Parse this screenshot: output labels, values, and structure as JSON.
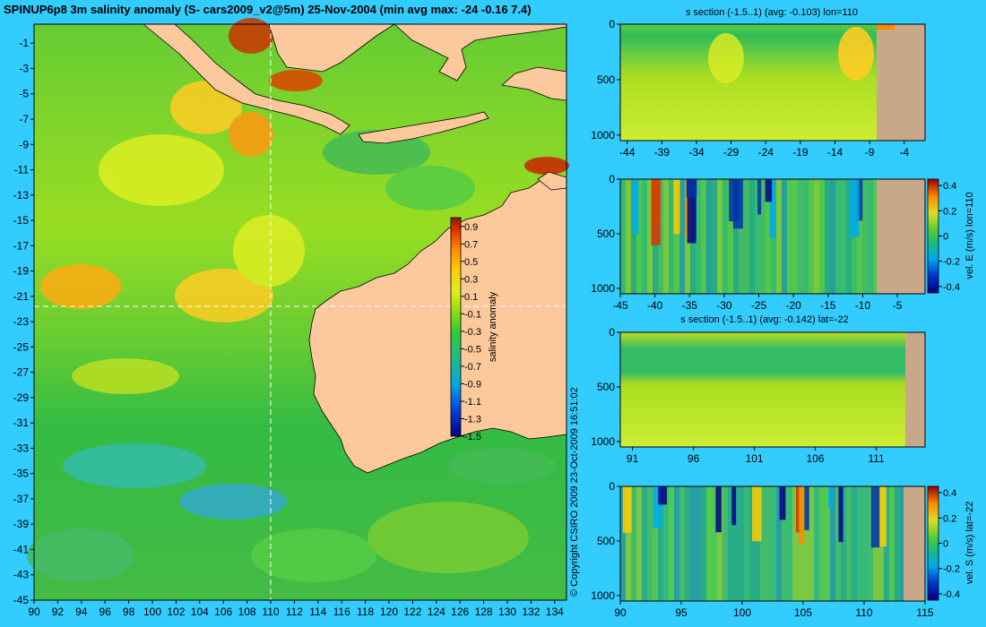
{
  "title": "SPINUP6p8 3m salinity anomaly (S- cars2009_v2@5m) 25-Nov-2004 (min avg max: -24 -0.16 7.4)",
  "copyright": "© Copyright CSIRO 2009   23-Oct-2009 16:51:02",
  "colors": {
    "background": "#33ccff",
    "land": "#fcc99c",
    "section_land": "#c8a888"
  },
  "chart_data": [
    {
      "type": "heatmap",
      "name": "salinity-map",
      "x_ticks": [
        90,
        92,
        94,
        96,
        98,
        100,
        102,
        104,
        106,
        108,
        110,
        112,
        114,
        116,
        118,
        120,
        122,
        124,
        126,
        128,
        130,
        132,
        134
      ],
      "y_ticks": [
        -1,
        -3,
        -5,
        -7,
        -9,
        -11,
        -13,
        -15,
        -17,
        -19,
        -21,
        -23,
        -25,
        -27,
        -29,
        -31,
        -33,
        -35,
        -37,
        -39,
        -41,
        -43,
        -45
      ],
      "xlim": [
        90,
        135
      ],
      "ylim": [
        -45,
        0.5
      ],
      "crosshair": {
        "lon": 110,
        "lat": -22
      },
      "colorbar": {
        "label": "salinity anomaly",
        "ticks": [
          "0.9",
          "0.7",
          "0.5",
          "0.3",
          "0.1",
          "-0.1",
          "-0.3",
          "-0.5",
          "-0.7",
          "-0.9",
          "-1.1",
          "-1.3",
          "-1.5"
        ],
        "range": [
          -1.5,
          1.0
        ]
      }
    },
    {
      "type": "heatmap",
      "name": "s-section-lon110",
      "title": "s section (-1.5..1) (avg: -0.103) lon=110",
      "x_ticks": [
        "-44",
        "-39",
        "-34",
        "-29",
        "-24",
        "-19",
        "-14",
        "-9",
        "-4"
      ],
      "y_ticks": [
        "0",
        "500",
        "1000"
      ],
      "xlim": [
        -45,
        -1
      ],
      "ylim": [
        1050,
        0
      ]
    },
    {
      "type": "heatmap",
      "name": "vel-e-section-lon110",
      "x_ticks": [
        "-45",
        "-40",
        "-35",
        "-30",
        "-25",
        "-20",
        "-15",
        "-10",
        "-5"
      ],
      "y_ticks": [
        "0",
        "500",
        "1000"
      ],
      "xlim": [
        -45,
        -1
      ],
      "ylim": [
        1050,
        0
      ],
      "colorbar": {
        "label": "vel. E (m/s) lon=110",
        "ticks": [
          "0.4",
          "0.2",
          "0",
          "-0.2",
          "-0.4"
        ],
        "range": [
          -0.45,
          0.45
        ]
      }
    },
    {
      "type": "heatmap",
      "name": "s-section-lat-22",
      "title": "s section (-1.5..1) (avg: -0.142) lat=-22",
      "x_ticks": [
        "91",
        "96",
        "101",
        "106",
        "111"
      ],
      "y_ticks": [
        "0",
        "500",
        "1000"
      ],
      "xlim": [
        90,
        115
      ],
      "ylim": [
        1050,
        0
      ]
    },
    {
      "type": "heatmap",
      "name": "vel-s-section-lat-22",
      "x_ticks": [
        "90",
        "95",
        "100",
        "105",
        "110",
        "115"
      ],
      "y_ticks": [
        "0",
        "500",
        "1000"
      ],
      "xlim": [
        90,
        115
      ],
      "ylim": [
        1050,
        0
      ],
      "colorbar": {
        "label": "vel. S (m/s) lat=-22",
        "ticks": [
          "0.4",
          "0.2",
          "0",
          "-0.2",
          "-0.4"
        ],
        "range": [
          -0.45,
          0.45
        ]
      }
    }
  ]
}
